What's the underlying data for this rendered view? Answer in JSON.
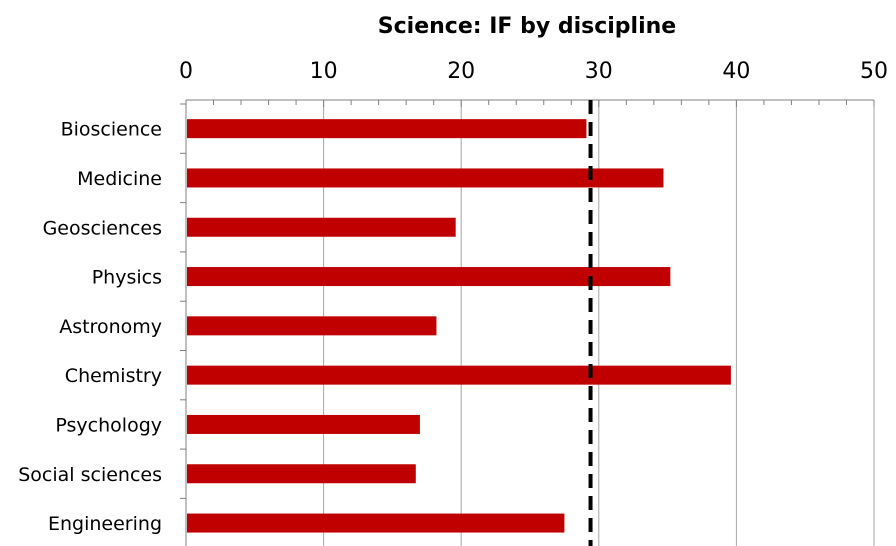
{
  "chart_data": {
    "type": "bar",
    "orientation": "horizontal",
    "title": "Science: IF by discipline",
    "xlabel": "",
    "ylabel": "",
    "xlim": [
      0,
      50
    ],
    "x_ticks": [
      0,
      10,
      20,
      30,
      40,
      50
    ],
    "x_axis_position": "top",
    "grid": true,
    "categories": [
      "Bioscience",
      "Medicine",
      "Geosciences",
      "Physics",
      "Astronomy",
      "Chemistry",
      "Psychology",
      "Social sciences",
      "Engineering"
    ],
    "values": [
      29.1,
      34.7,
      19.6,
      35.2,
      18.2,
      39.6,
      17.0,
      16.7,
      27.5
    ],
    "reference_line": {
      "value": 29.4,
      "style": "dashed"
    },
    "colors": {
      "bar": "#c00000",
      "reference_line": "#000000",
      "grid": "#a6a6a6"
    }
  }
}
